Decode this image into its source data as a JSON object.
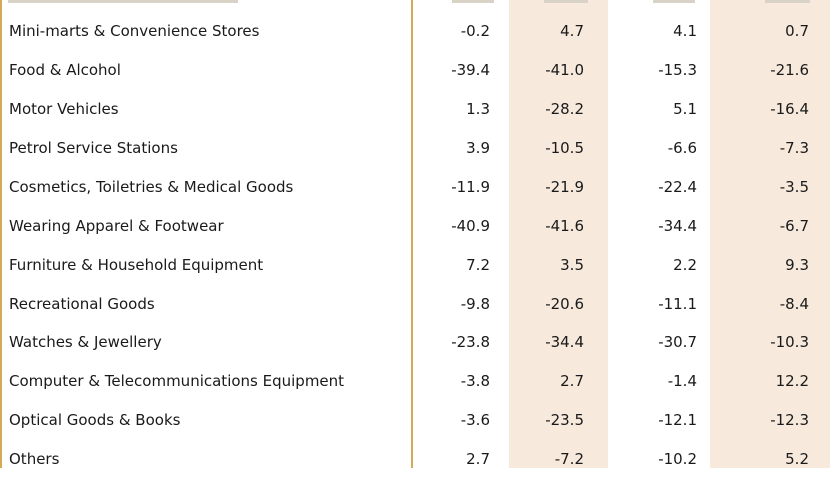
{
  "table": {
    "rows": [
      {
        "label": "Mini-marts & Convenience Stores",
        "values": [
          "-0.2",
          "4.7",
          "4.1",
          "0.7"
        ]
      },
      {
        "label": "Food & Alcohol",
        "values": [
          "-39.4",
          "-41.0",
          "-15.3",
          "-21.6"
        ]
      },
      {
        "label": "Motor Vehicles",
        "values": [
          "1.3",
          "-28.2",
          "5.1",
          "-16.4"
        ]
      },
      {
        "label": "Petrol Service Stations",
        "values": [
          "3.9",
          "-10.5",
          "-6.6",
          "-7.3"
        ]
      },
      {
        "label": "Cosmetics, Toiletries & Medical Goods",
        "values": [
          "-11.9",
          "-21.9",
          "-22.4",
          "-3.5"
        ]
      },
      {
        "label": "Wearing Apparel & Footwear",
        "values": [
          "-40.9",
          "-41.6",
          "-34.4",
          "-6.7"
        ]
      },
      {
        "label": "Furniture & Household Equipment",
        "values": [
          "7.2",
          "3.5",
          "2.2",
          "9.3"
        ]
      },
      {
        "label": "Recreational Goods",
        "values": [
          "-9.8",
          "-20.6",
          "-11.1",
          "-8.4"
        ]
      },
      {
        "label": "Watches & Jewellery",
        "values": [
          "-23.8",
          "-34.4",
          "-30.7",
          "-10.3"
        ]
      },
      {
        "label": "Computer  & Telecommunications Equipment",
        "values": [
          "-3.8",
          "2.7",
          "-1.4",
          "12.2"
        ]
      },
      {
        "label": "Optical Goods & Books",
        "values": [
          "-3.6",
          "-23.5",
          "-12.1",
          "-12.3"
        ]
      },
      {
        "label": "Others",
        "values": [
          "2.7",
          "-7.2",
          "-10.2",
          "5.2"
        ]
      }
    ]
  },
  "colors": {
    "rule": "#d3ab57",
    "shade": "#f7e9dc",
    "text": "#1a1a1a"
  }
}
